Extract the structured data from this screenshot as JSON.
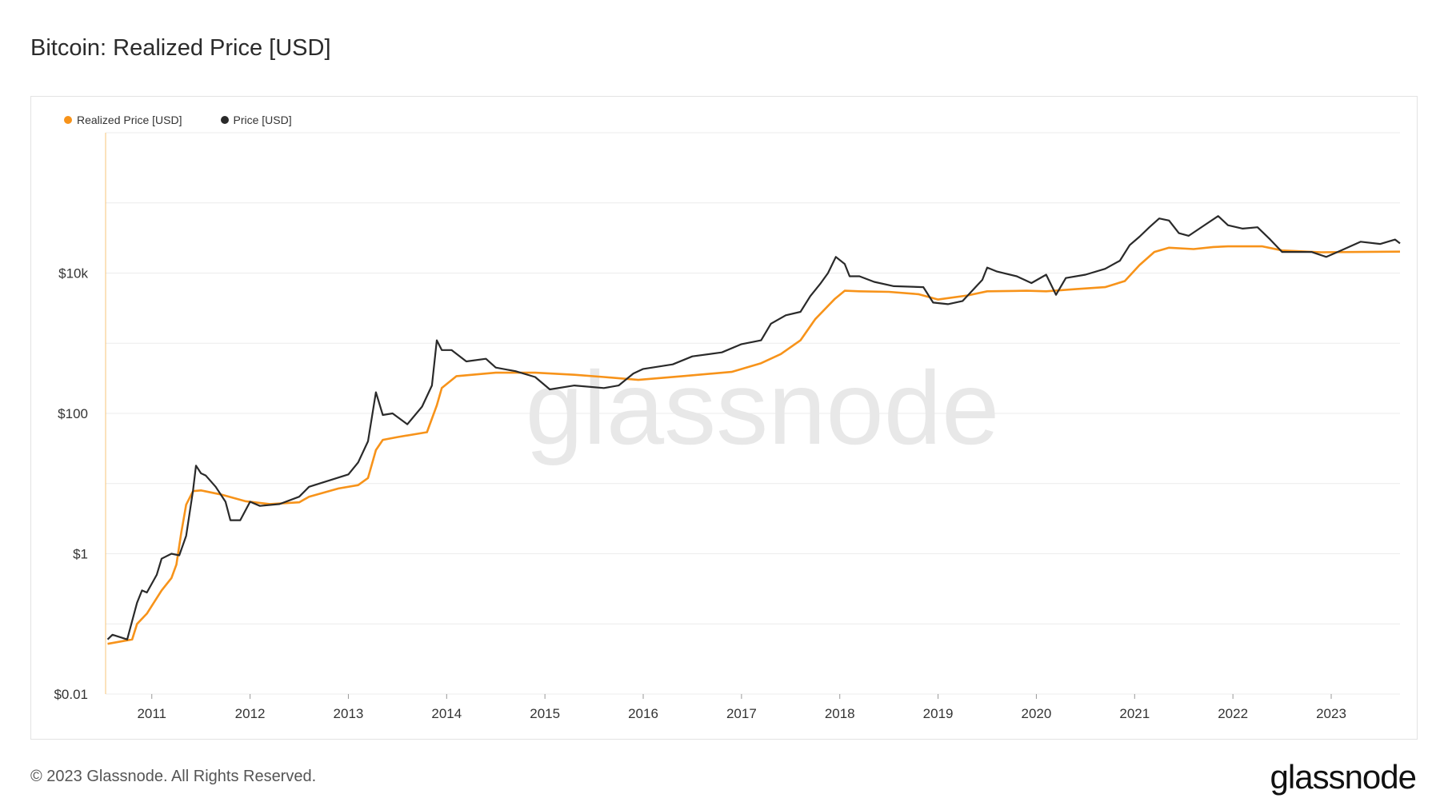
{
  "header": {
    "title": "Bitcoin: Realized Price [USD]"
  },
  "footer": {
    "copyright": "© 2023 Glassnode. All Rights Reserved.",
    "logo": "glassnode"
  },
  "watermark": "glassnode",
  "colors": {
    "realized": "#f7931a",
    "price": "#2a2a2a",
    "grid": "#ececec",
    "axis": "#f7c47a"
  },
  "chart_data": {
    "type": "line",
    "title": "Bitcoin: Realized Price [USD]",
    "xlabel": "",
    "ylabel": "",
    "yscale": "log",
    "ylim": [
      0.01,
      1000000
    ],
    "y_tick_labels": [
      {
        "value": 0.01,
        "label": "$0.01"
      },
      {
        "value": 1,
        "label": "$1"
      },
      {
        "value": 100,
        "label": "$100"
      },
      {
        "value": 10000,
        "label": "$10k"
      }
    ],
    "x_tick_labels": [
      "2011",
      "2012",
      "2013",
      "2014",
      "2015",
      "2016",
      "2017",
      "2018",
      "2019",
      "2020",
      "2021",
      "2022",
      "2023"
    ],
    "xlim": [
      2010.53,
      2023.7
    ],
    "legend": [
      "Realized Price [USD]",
      "Price [USD]"
    ],
    "legend_position": "top-left",
    "series": [
      {
        "name": "Realized Price [USD]",
        "color": "#f7931a",
        "x": [
          2010.55,
          2010.8,
          2010.85,
          2010.95,
          2011.1,
          2011.2,
          2011.25,
          2011.3,
          2011.35,
          2011.42,
          2011.5,
          2011.7,
          2011.95,
          2012.2,
          2012.5,
          2012.6,
          2012.9,
          2013.1,
          2013.2,
          2013.28,
          2013.35,
          2013.5,
          2013.8,
          2013.9,
          2013.95,
          2014.1,
          2014.5,
          2014.9,
          2015.3,
          2015.6,
          2015.95,
          2016.4,
          2016.9,
          2017.2,
          2017.4,
          2017.6,
          2017.75,
          2017.95,
          2018.05,
          2018.2,
          2018.5,
          2018.8,
          2019.0,
          2019.3,
          2019.5,
          2019.9,
          2020.1,
          2020.4,
          2020.7,
          2020.9,
          2021.05,
          2021.2,
          2021.35,
          2021.6,
          2021.8,
          2021.95,
          2022.3,
          2022.5,
          2022.9,
          2023.3,
          2023.7
        ],
        "y": [
          0.052,
          0.06,
          0.1,
          0.14,
          0.3,
          0.45,
          0.7,
          2.0,
          5.0,
          7.8,
          8.0,
          7.0,
          5.6,
          5.1,
          5.4,
          6.5,
          8.5,
          9.5,
          12,
          30,
          42,
          46,
          54,
          130,
          230,
          340,
          380,
          380,
          355,
          330,
          300,
          340,
          390,
          520,
          700,
          1100,
          2200,
          4300,
          5600,
          5500,
          5400,
          5000,
          4200,
          4800,
          5500,
          5600,
          5500,
          5900,
          6300,
          7700,
          13000,
          20000,
          23000,
          22000,
          23500,
          24000,
          24000,
          21000,
          19800,
          20000,
          20200
        ]
      },
      {
        "name": "Price [USD]",
        "color": "#2a2a2a",
        "x": [
          2010.55,
          2010.6,
          2010.75,
          2010.85,
          2010.9,
          2010.95,
          2011.05,
          2011.1,
          2011.2,
          2011.28,
          2011.35,
          2011.42,
          2011.45,
          2011.5,
          2011.55,
          2011.65,
          2011.75,
          2011.8,
          2011.9,
          2012.0,
          2012.1,
          2012.3,
          2012.5,
          2012.6,
          2012.8,
          2013.0,
          2013.1,
          2013.2,
          2013.25,
          2013.28,
          2013.35,
          2013.45,
          2013.6,
          2013.75,
          2013.85,
          2013.9,
          2013.95,
          2014.05,
          2014.2,
          2014.4,
          2014.5,
          2014.7,
          2014.9,
          2015.05,
          2015.3,
          2015.6,
          2015.75,
          2015.9,
          2016.0,
          2016.3,
          2016.5,
          2016.8,
          2017.0,
          2017.2,
          2017.3,
          2017.45,
          2017.6,
          2017.7,
          2017.8,
          2017.88,
          2017.96,
          2018.05,
          2018.1,
          2018.2,
          2018.35,
          2018.55,
          2018.85,
          2018.95,
          2019.1,
          2019.25,
          2019.45,
          2019.5,
          2019.6,
          2019.8,
          2019.95,
          2020.1,
          2020.2,
          2020.3,
          2020.5,
          2020.7,
          2020.85,
          2020.95,
          2021.05,
          2021.15,
          2021.25,
          2021.35,
          2021.45,
          2021.55,
          2021.7,
          2021.85,
          2021.95,
          2022.1,
          2022.25,
          2022.38,
          2022.5,
          2022.8,
          2022.95,
          2023.1,
          2023.3,
          2023.5,
          2023.65,
          2023.7
        ],
        "y": [
          0.06,
          0.07,
          0.06,
          0.2,
          0.3,
          0.28,
          0.5,
          0.85,
          1.0,
          0.95,
          1.8,
          8.0,
          18,
          14,
          13,
          9.0,
          5.5,
          3.0,
          3.0,
          5.5,
          4.8,
          5.1,
          6.5,
          9.0,
          11,
          13.5,
          20,
          40,
          110,
          200,
          95,
          100,
          70,
          125,
          250,
          1100,
          800,
          800,
          550,
          600,
          450,
          400,
          330,
          220,
          250,
          230,
          250,
          370,
          430,
          500,
          650,
          740,
          970,
          1100,
          1900,
          2500,
          2800,
          4700,
          7000,
          10000,
          17000,
          13500,
          9000,
          9000,
          7500,
          6500,
          6300,
          3800,
          3600,
          4000,
          8000,
          12000,
          10500,
          9000,
          7200,
          9500,
          4900,
          8500,
          9500,
          11500,
          15000,
          25000,
          33000,
          45000,
          60000,
          56000,
          37000,
          34000,
          47000,
          65000,
          48000,
          43000,
          45000,
          30000,
          20000,
          20000,
          17000,
          21000,
          28000,
          26000,
          30000,
          26500
        ]
      }
    ]
  }
}
